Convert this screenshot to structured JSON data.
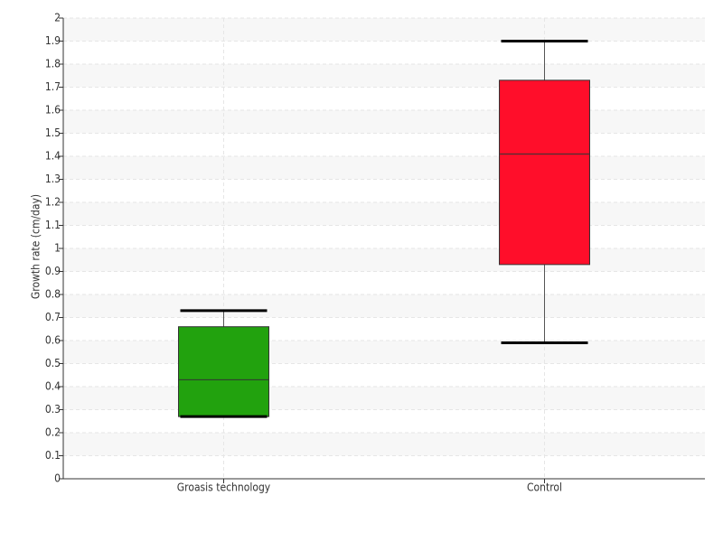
{
  "chart_data": {
    "type": "box",
    "y_label": "Growth rate (cm/day)",
    "categories": [
      "Groasis technology",
      "Control"
    ],
    "boxes": [
      {
        "min": 0.27,
        "q1": 0.27,
        "median": 0.43,
        "q3": 0.66,
        "max": 0.73,
        "color": "#22a20e"
      },
      {
        "min": 0.59,
        "q1": 0.93,
        "median": 1.41,
        "q3": 1.73,
        "max": 1.9,
        "color": "#ff0e2a"
      }
    ],
    "ylim": [
      0,
      2
    ],
    "yticks": [
      0,
      0.1,
      0.2,
      0.3,
      0.4,
      0.5,
      0.6,
      0.7,
      0.8,
      0.9,
      1,
      1.1,
      1.2,
      1.3,
      1.4,
      1.5,
      1.6,
      1.7,
      1.8,
      1.9,
      2
    ],
    "grid": true
  }
}
